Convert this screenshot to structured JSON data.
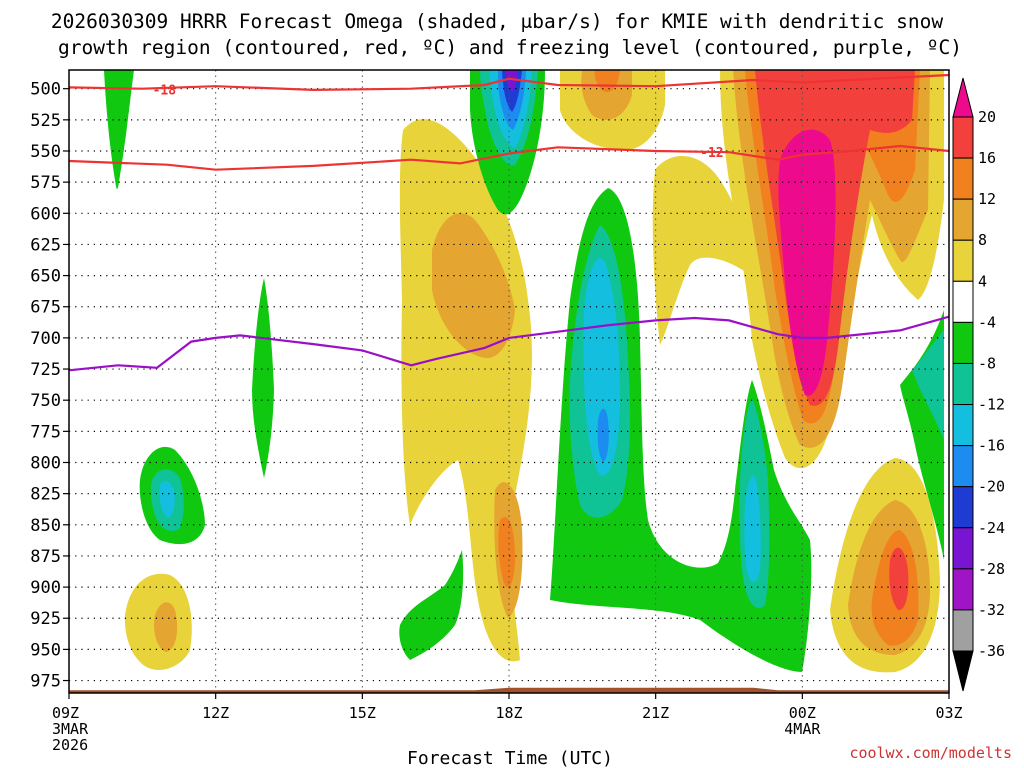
{
  "chart_data": {
    "type": "heatmap",
    "title": {
      "line1": "2026030309 HRRR Forecast Omega (shaded, μbar/s) for KMIE with dendritic snow",
      "line2": "growth region (contoured, red, ºC) and freezing level (contoured, purple, ºC)"
    },
    "xlabel": "Forecast Time (UTC)",
    "credit": "coolwx.com/modelts",
    "x_ticks": [
      {
        "hour": 0,
        "label": "09Z",
        "sub": [
          "3MAR",
          "2026"
        ]
      },
      {
        "hour": 3,
        "label": "12Z",
        "sub": []
      },
      {
        "hour": 6,
        "label": "15Z",
        "sub": []
      },
      {
        "hour": 9,
        "label": "18Z",
        "sub": []
      },
      {
        "hour": 12,
        "label": "21Z",
        "sub": []
      },
      {
        "hour": 15,
        "label": "00Z",
        "sub": [
          "4MAR"
        ]
      },
      {
        "hour": 18,
        "label": "03Z",
        "sub": []
      }
    ],
    "x_range_hours": [
      0,
      18
    ],
    "y_ticks": [
      "500",
      "525",
      "550",
      "575",
      "600",
      "625",
      "650",
      "675",
      "700",
      "725",
      "750",
      "775",
      "800",
      "825",
      "850",
      "875",
      "900",
      "925",
      "950",
      "975"
    ],
    "y_range_mb": [
      985,
      485
    ],
    "colorbar": {
      "labels": [
        "20",
        "16",
        "12",
        "8",
        "4",
        "-4",
        "-8",
        "-12",
        "-16",
        "-20",
        "-24",
        "-28",
        "-32",
        "-36"
      ],
      "bins": [
        {
          "range": "> 20",
          "color": "#ee0a8c"
        },
        {
          "range": "16-20",
          "color": "#f2403c"
        },
        {
          "range": "12-16",
          "color": "#f1801e"
        },
        {
          "range": "8-12",
          "color": "#e5a531"
        },
        {
          "range": "4-8",
          "color": "#e9d33a"
        },
        {
          "range": "-4 to 4",
          "color": "#ffffff"
        },
        {
          "range": "-8 to -4",
          "color": "#10c810"
        },
        {
          "range": "-12 to -8",
          "color": "#0fc396"
        },
        {
          "range": "-16 to -12",
          "color": "#14bede"
        },
        {
          "range": "-20 to -16",
          "color": "#1c8cf0"
        },
        {
          "range": "-24 to -20",
          "color": "#1f3cd2"
        },
        {
          "range": "-28 to -24",
          "color": "#7814d2"
        },
        {
          "range": "-32 to -28",
          "color": "#a014c8"
        },
        {
          "range": "-36 to -32",
          "color": "#a0a0a0"
        },
        {
          "range": "< -36",
          "color": "#000000"
        }
      ]
    },
    "contours": [
      {
        "name": "dgz-top",
        "value": -18,
        "label": "-18",
        "color": "#ee3333",
        "points": [
          [
            0,
            499
          ],
          [
            1.5,
            500
          ],
          [
            3,
            498
          ],
          [
            5,
            501
          ],
          [
            7,
            500
          ],
          [
            8.5,
            497
          ],
          [
            9,
            492
          ],
          [
            10,
            497
          ],
          [
            12,
            498
          ],
          [
            14,
            493
          ],
          [
            15,
            495
          ],
          [
            17,
            491
          ],
          [
            18,
            489
          ]
        ]
      },
      {
        "name": "dgz-bottom",
        "value": -12,
        "label": "-12",
        "color": "#ee3333",
        "points": [
          [
            0,
            558
          ],
          [
            2,
            561
          ],
          [
            3,
            565
          ],
          [
            5,
            562
          ],
          [
            7,
            557
          ],
          [
            8,
            560
          ],
          [
            9,
            552
          ],
          [
            10,
            547
          ],
          [
            12,
            550
          ],
          [
            13.5,
            551
          ],
          [
            14.5,
            557
          ],
          [
            15,
            553
          ],
          [
            16,
            550
          ],
          [
            17,
            546
          ],
          [
            18,
            550
          ]
        ]
      },
      {
        "name": "freezing-level",
        "value": 0,
        "label": "",
        "color": "#9a10c8",
        "points": [
          [
            0,
            726
          ],
          [
            1,
            722
          ],
          [
            1.8,
            724
          ],
          [
            2.5,
            703
          ],
          [
            3,
            700
          ],
          [
            3.5,
            698
          ],
          [
            5,
            705
          ],
          [
            6,
            710
          ],
          [
            7,
            722
          ],
          [
            7.5,
            717
          ],
          [
            8.5,
            708
          ],
          [
            9,
            700
          ],
          [
            10,
            695
          ],
          [
            11,
            690
          ],
          [
            12,
            686
          ],
          [
            12.8,
            684
          ],
          [
            13.5,
            686
          ],
          [
            14.5,
            697
          ],
          [
            15,
            700
          ],
          [
            15.5,
            700
          ],
          [
            16.5,
            696
          ],
          [
            17,
            694
          ],
          [
            18,
            683
          ]
        ]
      }
    ],
    "surface_terrain": {
      "color": "#a0522d",
      "top_mb": 982
    }
  }
}
